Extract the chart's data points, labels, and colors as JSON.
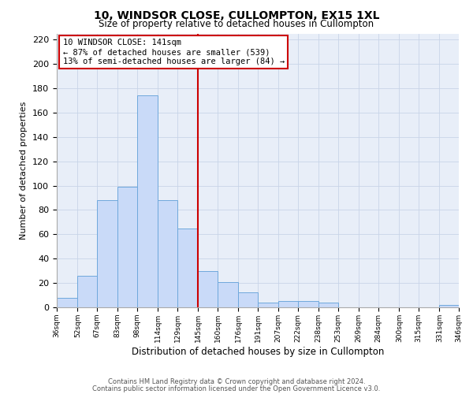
{
  "title": "10, WINDSOR CLOSE, CULLOMPTON, EX15 1XL",
  "subtitle": "Size of property relative to detached houses in Cullompton",
  "xlabel": "Distribution of detached houses by size in Cullompton",
  "ylabel": "Number of detached properties",
  "bar_edges": [
    36,
    52,
    67,
    83,
    98,
    114,
    129,
    145,
    160,
    176,
    191,
    207,
    222,
    238,
    253,
    269,
    284,
    300,
    315,
    331,
    346
  ],
  "bar_heights": [
    8,
    26,
    88,
    99,
    174,
    88,
    65,
    30,
    21,
    12,
    4,
    5,
    5,
    4,
    0,
    0,
    0,
    0,
    0,
    2
  ],
  "bar_color": "#c9daf8",
  "bar_edge_color": "#6fa8dc",
  "vline_x": 145,
  "vline_color": "#cc0000",
  "ylim": [
    0,
    225
  ],
  "yticks": [
    0,
    20,
    40,
    60,
    80,
    100,
    120,
    140,
    160,
    180,
    200,
    220
  ],
  "xtick_labels": [
    "36sqm",
    "52sqm",
    "67sqm",
    "83sqm",
    "98sqm",
    "114sqm",
    "129sqm",
    "145sqm",
    "160sqm",
    "176sqm",
    "191sqm",
    "207sqm",
    "222sqm",
    "238sqm",
    "253sqm",
    "269sqm",
    "284sqm",
    "300sqm",
    "315sqm",
    "331sqm",
    "346sqm"
  ],
  "annotation_title": "10 WINDSOR CLOSE: 141sqm",
  "annotation_line1": "← 87% of detached houses are smaller (539)",
  "annotation_line2": "13% of semi-detached houses are larger (84) →",
  "annotation_box_color": "#ffffff",
  "annotation_box_edge_color": "#cc0000",
  "background_color": "#ffffff",
  "plot_bg_color": "#e8eef8",
  "grid_color": "#c8d4e8",
  "footnote1": "Contains HM Land Registry data © Crown copyright and database right 2024.",
  "footnote2": "Contains public sector information licensed under the Open Government Licence v3.0.",
  "title_fontsize": 10,
  "subtitle_fontsize": 8.5,
  "xlabel_fontsize": 8.5,
  "ylabel_fontsize": 8,
  "xtick_fontsize": 6.5,
  "ytick_fontsize": 8,
  "annotation_fontsize": 7.5,
  "footnote_fontsize": 6
}
